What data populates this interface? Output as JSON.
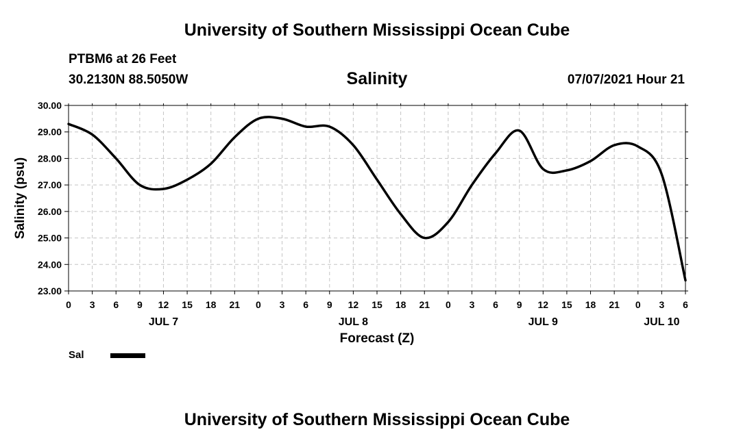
{
  "header": {
    "title": "University of Southern Mississippi Ocean Cube",
    "station": "PTBM6 at 26 Feet",
    "coords": "30.2130N  88.5050W",
    "timestamp": "07/07/2021 Hour 21"
  },
  "footer": {
    "title": "University of Southern Mississippi Ocean Cube"
  },
  "legend": {
    "label": "Sal",
    "color": "#000000"
  },
  "chart_data": {
    "type": "line",
    "title": "Salinity",
    "xlabel": "Forecast (Z)",
    "ylabel": "Salinity (psu)",
    "xlim": [
      0,
      78
    ],
    "ylim": [
      23,
      30
    ],
    "grid": true,
    "yticks": [
      "23.00",
      "24.00",
      "25.00",
      "26.00",
      "27.00",
      "28.00",
      "29.00",
      "30.00"
    ],
    "xticks": [
      "0",
      "3",
      "6",
      "9",
      "12",
      "15",
      "18",
      "21",
      "0",
      "3",
      "6",
      "9",
      "12",
      "15",
      "18",
      "21",
      "0",
      "3",
      "6",
      "9",
      "12",
      "15",
      "18",
      "21",
      "0",
      "3",
      "6"
    ],
    "date_labels": [
      {
        "label": "JUL 7",
        "hour": 12
      },
      {
        "label": "JUL 8",
        "hour": 36
      },
      {
        "label": "JUL 9",
        "hour": 60
      },
      {
        "label": "JUL 10",
        "hour": 75
      }
    ],
    "series": [
      {
        "name": "Sal",
        "x": [
          0,
          3,
          6,
          9,
          12,
          15,
          18,
          21,
          24,
          27,
          30,
          33,
          36,
          39,
          42,
          45,
          48,
          51,
          54,
          57,
          60,
          63,
          66,
          69,
          72,
          75,
          78
        ],
        "values": [
          29.3,
          28.9,
          28.0,
          27.0,
          26.85,
          27.2,
          27.8,
          28.8,
          29.5,
          29.5,
          29.2,
          29.2,
          28.5,
          27.2,
          25.9,
          25.0,
          25.6,
          27.0,
          28.2,
          29.05,
          27.6,
          27.55,
          27.9,
          28.5,
          28.45,
          27.4,
          23.4
        ]
      }
    ]
  }
}
